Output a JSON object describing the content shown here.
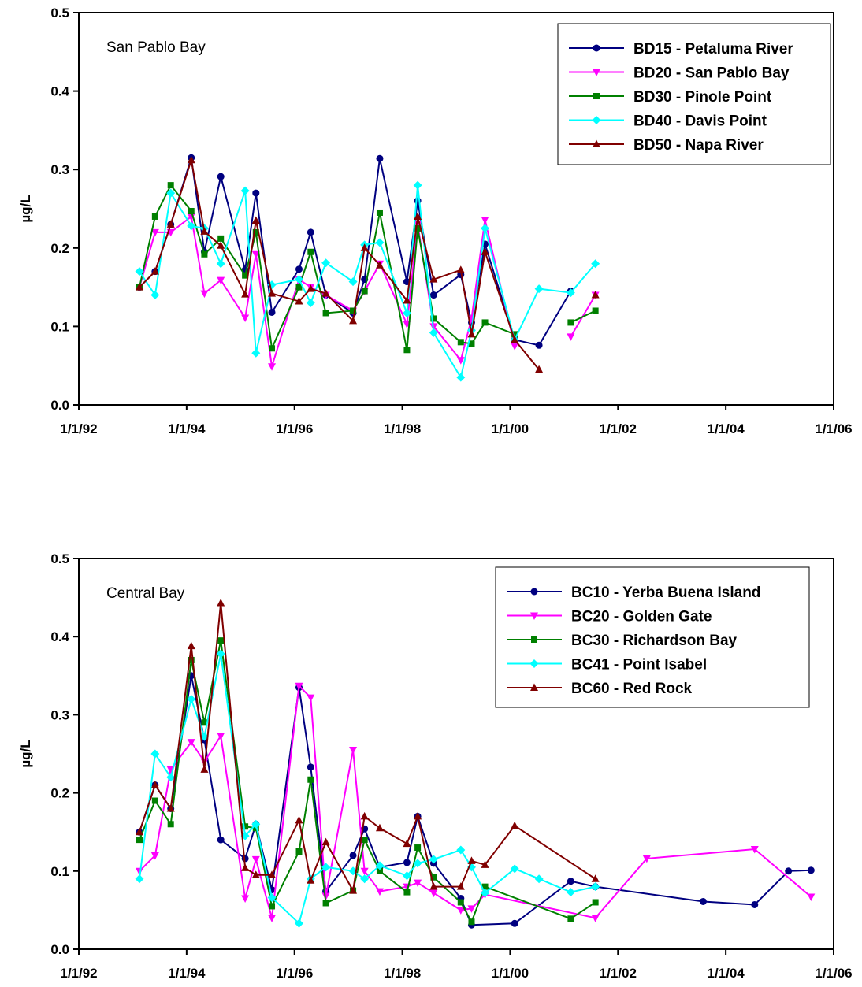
{
  "chart_data": [
    {
      "type": "line",
      "annotation": "San Pablo Bay",
      "ylabel": "µg/L",
      "xlabel": "",
      "ylim": [
        0,
        0.5
      ],
      "yticks": [
        "0.0",
        "0.1",
        "0.2",
        "0.3",
        "0.4",
        "0.5"
      ],
      "xlim": [
        "1992-01-01",
        "2006-01-01"
      ],
      "xticks": [
        "1/1/92",
        "1/1/94",
        "1/1/96",
        "1/1/98",
        "1/1/00",
        "1/1/02",
        "1/1/04",
        "1/1/06"
      ],
      "legend_position": "top-right",
      "series": [
        {
          "name": "BD15 - Petaluma River",
          "color": "#000080",
          "marker": "circle",
          "x": [
            "1993-02-15",
            "1993-06-01",
            "1993-09-15",
            "1994-02-01",
            "1994-05-01",
            "1994-08-20",
            "1995-02-01",
            "1995-04-15",
            "1995-08-01",
            "1996-02-01",
            "1996-04-20",
            "1996-08-01",
            "1997-02-01",
            "1997-04-20",
            "1997-08-01",
            "1998-02-01",
            "1998-04-15",
            "1998-08-01",
            "1999-02-01",
            "1999-04-15",
            "1999-07-15",
            "2000-02-01",
            "2000-07-15",
            "2001-02-15"
          ],
          "y": [
            0.15,
            0.17,
            0.23,
            0.315,
            0.195,
            0.291,
            0.172,
            0.27,
            0.118,
            0.173,
            0.22,
            0.14,
            0.117,
            0.16,
            0.314,
            0.157,
            0.26,
            0.14,
            0.166,
            0.105,
            0.205,
            0.083,
            0.076,
            0.145
          ]
        },
        {
          "name": "BD20 - San Pablo Bay",
          "color": "#ff00ff",
          "marker": "triangle-down",
          "x": [
            "1993-02-15",
            "1993-06-01",
            "1993-09-15",
            "1994-02-01",
            "1994-05-01",
            "1994-08-20",
            "1995-02-01",
            "1995-04-15",
            "1995-08-01",
            "1996-02-01",
            "1996-04-20",
            "1996-08-01",
            "1997-02-01",
            "1997-04-20",
            "1997-08-01",
            "1998-02-01",
            "1998-04-15",
            "1998-08-01",
            "1999-02-01",
            "1999-04-15",
            "1999-07-15",
            "2000-02-01",
            null,
            "2001-02-15",
            "2001-08-01"
          ],
          "y": [
            0.15,
            0.22,
            0.22,
            0.24,
            0.142,
            0.159,
            0.111,
            0.192,
            0.049,
            0.16,
            0.15,
            0.14,
            0.12,
            0.145,
            0.18,
            0.103,
            0.23,
            0.1,
            0.057,
            0.11,
            0.236,
            0.075,
            null,
            0.087,
            0.14
          ]
        },
        {
          "name": "BD30 - Pinole Point",
          "color": "#008000",
          "marker": "square",
          "x": [
            "1993-02-15",
            "1993-06-01",
            "1993-09-15",
            "1994-02-01",
            "1994-05-01",
            "1994-08-20",
            "1995-02-01",
            "1995-04-15",
            "1995-08-01",
            "1996-02-01",
            "1996-04-20",
            "1996-08-01",
            "1997-02-01",
            "1997-04-20",
            "1997-08-01",
            "1998-02-01",
            "1998-04-15",
            "1998-08-01",
            "1999-02-01",
            "1999-04-15",
            "1999-07-15",
            "2000-02-01",
            null,
            "2001-02-15",
            "2001-08-01"
          ],
          "y": [
            0.15,
            0.24,
            0.28,
            0.247,
            0.192,
            0.212,
            0.165,
            0.22,
            0.072,
            0.15,
            0.195,
            0.117,
            0.12,
            0.145,
            0.245,
            0.07,
            0.225,
            0.11,
            0.08,
            0.078,
            0.105,
            0.09,
            null,
            0.105,
            0.12
          ]
        },
        {
          "name": "BD40 - Davis Point",
          "color": "#00ffff",
          "marker": "diamond",
          "x": [
            "1993-02-15",
            "1993-06-01",
            "1993-09-15",
            "1994-02-01",
            "1994-05-01",
            "1994-08-20",
            "1995-02-01",
            "1995-04-15",
            "1995-08-01",
            "1996-02-01",
            "1996-04-20",
            "1996-08-01",
            "1997-02-01",
            "1997-04-20",
            "1997-08-01",
            "1998-02-01",
            "1998-04-15",
            "1998-08-01",
            "1999-02-01",
            "1999-04-15",
            "1999-07-15",
            "2000-02-01",
            "2000-07-15",
            "2001-02-15",
            "2001-08-01"
          ],
          "y": [
            0.17,
            0.14,
            0.27,
            0.228,
            0.225,
            0.18,
            0.273,
            0.066,
            0.153,
            0.16,
            0.13,
            0.181,
            0.157,
            0.204,
            0.207,
            0.117,
            0.28,
            0.092,
            0.035,
            0.095,
            0.225,
            0.083,
            0.148,
            0.143,
            0.18
          ]
        },
        {
          "name": "BD50 - Napa River",
          "color": "#800000",
          "marker": "triangle-up",
          "x": [
            "1993-02-15",
            "1993-06-01",
            "1993-09-15",
            "1994-02-01",
            "1994-05-01",
            "1994-08-20",
            "1995-02-01",
            "1995-04-15",
            "1995-08-01",
            "1996-02-01",
            "1996-04-20",
            "1996-08-01",
            "1997-02-01",
            "1997-04-20",
            "1997-08-01",
            "1998-02-01",
            "1998-04-15",
            "1998-08-01",
            "1999-02-01",
            "1999-04-15",
            "1999-07-15",
            "2000-02-01",
            "2000-07-15",
            null,
            "2001-08-01"
          ],
          "y": [
            0.15,
            0.17,
            0.23,
            0.312,
            0.221,
            0.203,
            0.141,
            0.235,
            0.142,
            0.132,
            0.148,
            0.142,
            0.107,
            0.2,
            0.178,
            0.133,
            0.24,
            0.16,
            0.172,
            0.09,
            0.195,
            0.083,
            0.045,
            null,
            0.14
          ]
        }
      ]
    },
    {
      "type": "line",
      "annotation": "Central Bay",
      "ylabel": "µg/L",
      "xlabel": "",
      "ylim": [
        0,
        0.5
      ],
      "yticks": [
        "0.0",
        "0.1",
        "0.2",
        "0.3",
        "0.4",
        "0.5"
      ],
      "xlim": [
        "1992-01-01",
        "2006-01-01"
      ],
      "xticks": [
        "1/1/92",
        "1/1/94",
        "1/1/96",
        "1/1/98",
        "1/1/00",
        "1/1/02",
        "1/1/04",
        "1/1/06"
      ],
      "legend_position": "top-right",
      "series": [
        {
          "name": "BC10 - Yerba Buena Island",
          "color": "#000080",
          "marker": "circle",
          "x": [
            "1993-02-15",
            "1993-06-01",
            "1993-09-15",
            "1994-02-01",
            "1994-05-01",
            "1994-08-20",
            "1995-02-01",
            "1995-04-15",
            "1995-08-01",
            "1996-02-01",
            "1996-04-20",
            "1996-08-01",
            "1997-02-01",
            "1997-04-20",
            "1997-08-01",
            "1998-02-01",
            "1998-04-15",
            "1998-08-01",
            "1999-02-01",
            "1999-04-15",
            "2000-02-01",
            "2001-02-15",
            "2001-08-01",
            "2003-08-01",
            "2004-07-15",
            "2005-03-01",
            "2005-08-01"
          ],
          "y": [
            0.15,
            0.21,
            0.18,
            0.35,
            0.268,
            0.14,
            0.116,
            0.16,
            0.076,
            0.335,
            0.233,
            0.074,
            0.12,
            0.154,
            0.105,
            0.111,
            0.17,
            0.11,
            0.065,
            0.031,
            0.033,
            0.087,
            0.08,
            0.061,
            0.057,
            0.1,
            0.101
          ]
        },
        {
          "name": "BC20 - Golden Gate",
          "color": "#ff00ff",
          "marker": "triangle-down",
          "x": [
            "1993-02-15",
            "1993-06-01",
            "1993-09-15",
            "1994-02-01",
            "1994-05-01",
            "1994-08-20",
            "1995-02-01",
            "1995-04-15",
            "1995-08-01",
            "1996-02-01",
            "1996-04-20",
            "1996-08-01",
            "1997-02-01",
            "1997-04-20",
            "1997-08-01",
            "1998-02-01",
            "1998-04-15",
            "1998-08-01",
            "1999-02-01",
            "1999-04-15",
            "1999-07-15",
            "2001-08-01",
            "2002-07-15",
            "2004-07-15",
            "2005-08-01"
          ],
          "y": [
            0.1,
            0.12,
            0.23,
            0.265,
            0.24,
            0.273,
            0.065,
            0.115,
            0.04,
            0.337,
            0.322,
            0.068,
            0.255,
            0.1,
            0.074,
            0.08,
            0.085,
            0.072,
            0.05,
            0.052,
            0.07,
            0.04,
            0.116,
            0.128,
            0.067
          ]
        },
        {
          "name": "BC30 - Richardson Bay",
          "color": "#008000",
          "marker": "square",
          "x": [
            "1993-02-15",
            "1993-06-01",
            "1993-09-15",
            "1994-02-01",
            "1994-05-01",
            "1994-08-20",
            "1995-02-01",
            "1995-04-15",
            "1995-08-01",
            "1996-02-01",
            "1996-04-20",
            "1996-08-01",
            "1997-02-01",
            "1997-04-20",
            "1997-08-01",
            "1998-02-01",
            "1998-04-15",
            "1998-08-01",
            "1999-02-01",
            "1999-04-15",
            "1999-07-15",
            "2001-02-15",
            "2001-08-01"
          ],
          "y": [
            0.14,
            0.19,
            0.16,
            0.37,
            0.29,
            0.395,
            0.157,
            0.155,
            0.055,
            0.125,
            0.217,
            0.059,
            0.075,
            0.14,
            0.1,
            0.073,
            0.13,
            0.092,
            0.06,
            0.035,
            0.08,
            0.039,
            0.06
          ]
        },
        {
          "name": "BC41 - Point Isabel",
          "color": "#00ffff",
          "marker": "diamond",
          "x": [
            "1993-02-15",
            "1993-06-01",
            "1993-09-15",
            "1994-02-01",
            "1994-05-01",
            "1994-08-20",
            "1995-02-01",
            "1995-04-15",
            "1995-08-01",
            "1996-02-01",
            "1996-04-20",
            "1996-08-01",
            "1997-02-01",
            "1997-04-20",
            "1997-08-01",
            "1998-02-01",
            "1998-04-15",
            "1998-08-01",
            "1999-02-01",
            "1999-04-15",
            "1999-07-15",
            "2000-02-01",
            "2000-07-15",
            "2001-02-15",
            "2001-08-01"
          ],
          "y": [
            0.09,
            0.25,
            0.22,
            0.32,
            0.272,
            0.378,
            0.145,
            0.16,
            0.066,
            0.033,
            0.09,
            0.105,
            0.1,
            0.09,
            0.107,
            0.094,
            0.11,
            0.115,
            0.127,
            0.105,
            0.072,
            0.103,
            0.09,
            0.073,
            0.08
          ]
        },
        {
          "name": "BC60 - Red Rock",
          "color": "#800000",
          "marker": "triangle-up",
          "x": [
            "1993-02-15",
            "1993-06-01",
            "1993-09-15",
            "1994-02-01",
            "1994-05-01",
            "1994-08-20",
            "1995-02-01",
            "1995-04-15",
            "1995-08-01",
            "1996-02-01",
            "1996-04-20",
            "1996-08-01",
            "1997-02-01",
            "1997-04-20",
            "1997-08-01",
            "1998-02-01",
            "1998-04-15",
            "1998-08-01",
            "1999-02-01",
            "1999-04-15",
            "1999-07-15",
            "2000-02-01",
            "2001-08-01"
          ],
          "y": [
            0.15,
            0.21,
            0.18,
            0.388,
            0.23,
            0.443,
            0.104,
            0.095,
            0.095,
            0.165,
            0.088,
            0.137,
            0.075,
            0.17,
            0.155,
            0.135,
            0.17,
            0.08,
            0.08,
            0.113,
            0.108,
            0.158,
            0.09
          ]
        }
      ]
    }
  ]
}
